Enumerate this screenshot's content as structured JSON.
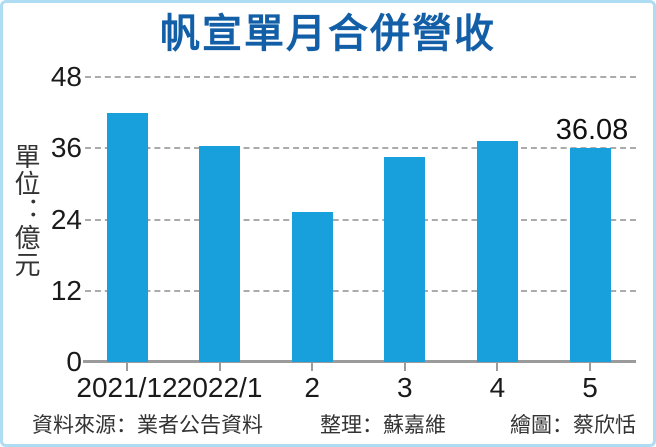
{
  "title": "帆宣單月合併營收",
  "unit_label": "單位：億元",
  "chart_data": {
    "type": "bar",
    "title": "帆宣單月合併營收",
    "ylabel": "單位：億元",
    "categories": [
      "2021/12",
      "2022/1",
      "2",
      "3",
      "4",
      "5"
    ],
    "values": [
      41.9,
      36.3,
      25.2,
      34.6,
      37.2,
      36.08
    ],
    "ylim": [
      0,
      48
    ],
    "yticks": [
      0,
      12,
      24,
      36,
      48
    ],
    "grid": "horizontal-dashed",
    "legend": "none",
    "bar_label": {
      "index": 5,
      "text": "36.08"
    }
  },
  "colors": {
    "title": "#135FA7",
    "bar": "#18A0DC",
    "border": "#AEDCF2",
    "grid": "#ABABAB",
    "axis": "#9B9B9B",
    "text": "#1A1A1A"
  },
  "footer": {
    "source": "資料來源：業者公告資料",
    "editor": "整理：蘇嘉維",
    "illustrator": "繪圖：蔡欣恬"
  }
}
